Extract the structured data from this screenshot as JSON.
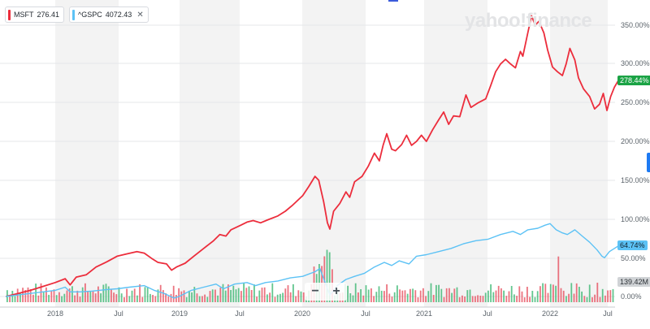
{
  "legend": {
    "items": [
      {
        "symbol": "MSFT",
        "value": "276.41",
        "color": "#ec2d3c"
      },
      {
        "symbol": "^GSPC",
        "value": "4072.43",
        "color": "#5cc2f5",
        "close_icon": "✕"
      }
    ]
  },
  "watermark": "yahoo!finance",
  "zoom": {
    "minus": "−",
    "plus": "+"
  },
  "badges": {
    "msft": "278.44%",
    "gspc": "64.74%",
    "volume": "139.42M"
  },
  "colors": {
    "msft": "#ec2d3c",
    "gspc": "#5cc2f5",
    "vol_up": "#2fb36a",
    "vol_down": "#e64556",
    "band": "#f3f3f3",
    "axis_text": "#5b636a"
  },
  "chart_data": {
    "type": "line",
    "x_ticks": [
      "2018",
      "Jul",
      "2019",
      "Jul",
      "2020",
      "Jul",
      "2021",
      "Jul",
      "2022",
      "Jul"
    ],
    "y_ticks": [
      "0.00%",
      "50.00%",
      "100.00%",
      "150.00%",
      "200.00%",
      "250.00%",
      "300.00%",
      "350.00%"
    ],
    "ylim": [
      -5,
      370
    ],
    "x_range": [
      2017.6,
      2022.55
    ],
    "series": [
      {
        "name": "MSFT",
        "points": [
          [
            2017.6,
            0
          ],
          [
            2017.7,
            4
          ],
          [
            2017.8,
            8
          ],
          [
            2017.9,
            13
          ],
          [
            2018.0,
            18
          ],
          [
            2018.08,
            23
          ],
          [
            2018.12,
            15
          ],
          [
            2018.17,
            25
          ],
          [
            2018.25,
            28
          ],
          [
            2018.33,
            38
          ],
          [
            2018.42,
            45
          ],
          [
            2018.5,
            52
          ],
          [
            2018.58,
            55
          ],
          [
            2018.66,
            58
          ],
          [
            2018.72,
            56
          ],
          [
            2018.78,
            49
          ],
          [
            2018.83,
            44
          ],
          [
            2018.9,
            42
          ],
          [
            2018.94,
            34
          ],
          [
            2018.98,
            38
          ],
          [
            2019.05,
            43
          ],
          [
            2019.12,
            52
          ],
          [
            2019.2,
            62
          ],
          [
            2019.28,
            72
          ],
          [
            2019.33,
            80
          ],
          [
            2019.38,
            78
          ],
          [
            2019.42,
            86
          ],
          [
            2019.5,
            92
          ],
          [
            2019.55,
            96
          ],
          [
            2019.6,
            98
          ],
          [
            2019.66,
            95
          ],
          [
            2019.72,
            99
          ],
          [
            2019.8,
            104
          ],
          [
            2019.86,
            110
          ],
          [
            2019.92,
            118
          ],
          [
            2020.0,
            130
          ],
          [
            2020.05,
            142
          ],
          [
            2020.1,
            155
          ],
          [
            2020.13,
            150
          ],
          [
            2020.17,
            122
          ],
          [
            2020.2,
            95
          ],
          [
            2020.22,
            87
          ],
          [
            2020.25,
            110
          ],
          [
            2020.3,
            120
          ],
          [
            2020.35,
            135
          ],
          [
            2020.38,
            128
          ],
          [
            2020.42,
            148
          ],
          [
            2020.48,
            155
          ],
          [
            2020.53,
            168
          ],
          [
            2020.58,
            185
          ],
          [
            2020.62,
            175
          ],
          [
            2020.65,
            195
          ],
          [
            2020.68,
            210
          ],
          [
            2020.72,
            190
          ],
          [
            2020.75,
            188
          ],
          [
            2020.8,
            196
          ],
          [
            2020.84,
            208
          ],
          [
            2020.88,
            195
          ],
          [
            2020.92,
            200
          ],
          [
            2020.96,
            208
          ],
          [
            2021.0,
            200
          ],
          [
            2021.05,
            215
          ],
          [
            2021.1,
            228
          ],
          [
            2021.14,
            238
          ],
          [
            2021.18,
            222
          ],
          [
            2021.22,
            233
          ],
          [
            2021.27,
            232
          ],
          [
            2021.32,
            260
          ],
          [
            2021.36,
            244
          ],
          [
            2021.42,
            250
          ],
          [
            2021.48,
            255
          ],
          [
            2021.52,
            272
          ],
          [
            2021.56,
            290
          ],
          [
            2021.6,
            300
          ],
          [
            2021.64,
            306
          ],
          [
            2021.68,
            300
          ],
          [
            2021.72,
            295
          ],
          [
            2021.76,
            316
          ],
          [
            2021.78,
            310
          ],
          [
            2021.82,
            340
          ],
          [
            2021.85,
            362
          ],
          [
            2021.88,
            350
          ],
          [
            2021.91,
            355
          ],
          [
            2021.95,
            340
          ],
          [
            2021.98,
            318
          ],
          [
            2022.02,
            296
          ],
          [
            2022.06,
            290
          ],
          [
            2022.1,
            285
          ],
          [
            2022.13,
            300
          ],
          [
            2022.16,
            320
          ],
          [
            2022.2,
            305
          ],
          [
            2022.23,
            282
          ],
          [
            2022.27,
            268
          ],
          [
            2022.32,
            258
          ],
          [
            2022.36,
            242
          ],
          [
            2022.4,
            248
          ],
          [
            2022.43,
            262
          ],
          [
            2022.46,
            240
          ],
          [
            2022.49,
            258
          ],
          [
            2022.52,
            270
          ],
          [
            2022.55,
            278
          ]
        ]
      },
      {
        "name": "^GSPC",
        "points": [
          [
            2017.6,
            0
          ],
          [
            2017.7,
            2
          ],
          [
            2017.8,
            4
          ],
          [
            2017.9,
            6
          ],
          [
            2018.0,
            8
          ],
          [
            2018.08,
            12
          ],
          [
            2018.12,
            6
          ],
          [
            2018.2,
            6
          ],
          [
            2018.3,
            7
          ],
          [
            2018.42,
            9
          ],
          [
            2018.5,
            10
          ],
          [
            2018.6,
            12
          ],
          [
            2018.72,
            14
          ],
          [
            2018.8,
            8
          ],
          [
            2018.88,
            4
          ],
          [
            2018.96,
            -2
          ],
          [
            2019.0,
            0
          ],
          [
            2019.1,
            8
          ],
          [
            2019.2,
            12
          ],
          [
            2019.3,
            16
          ],
          [
            2019.36,
            10
          ],
          [
            2019.45,
            16
          ],
          [
            2019.55,
            18
          ],
          [
            2019.62,
            14
          ],
          [
            2019.7,
            18
          ],
          [
            2019.8,
            20
          ],
          [
            2019.9,
            24
          ],
          [
            2020.0,
            26
          ],
          [
            2020.1,
            32
          ],
          [
            2020.14,
            36
          ],
          [
            2020.2,
            10
          ],
          [
            2020.22,
            2
          ],
          [
            2020.28,
            14
          ],
          [
            2020.35,
            22
          ],
          [
            2020.42,
            26
          ],
          [
            2020.5,
            30
          ],
          [
            2020.58,
            38
          ],
          [
            2020.66,
            44
          ],
          [
            2020.72,
            40
          ],
          [
            2020.78,
            46
          ],
          [
            2020.86,
            42
          ],
          [
            2020.92,
            52
          ],
          [
            2021.0,
            54
          ],
          [
            2021.1,
            58
          ],
          [
            2021.2,
            62
          ],
          [
            2021.3,
            68
          ],
          [
            2021.4,
            72
          ],
          [
            2021.5,
            74
          ],
          [
            2021.6,
            80
          ],
          [
            2021.7,
            84
          ],
          [
            2021.76,
            80
          ],
          [
            2021.82,
            86
          ],
          [
            2021.9,
            88
          ],
          [
            2021.96,
            92
          ],
          [
            2022.0,
            94
          ],
          [
            2022.05,
            86
          ],
          [
            2022.1,
            82
          ],
          [
            2022.14,
            80
          ],
          [
            2022.2,
            86
          ],
          [
            2022.26,
            78
          ],
          [
            2022.32,
            70
          ],
          [
            2022.38,
            60
          ],
          [
            2022.42,
            52
          ],
          [
            2022.44,
            50
          ],
          [
            2022.48,
            58
          ],
          [
            2022.52,
            62
          ],
          [
            2022.55,
            65
          ]
        ]
      }
    ]
  }
}
